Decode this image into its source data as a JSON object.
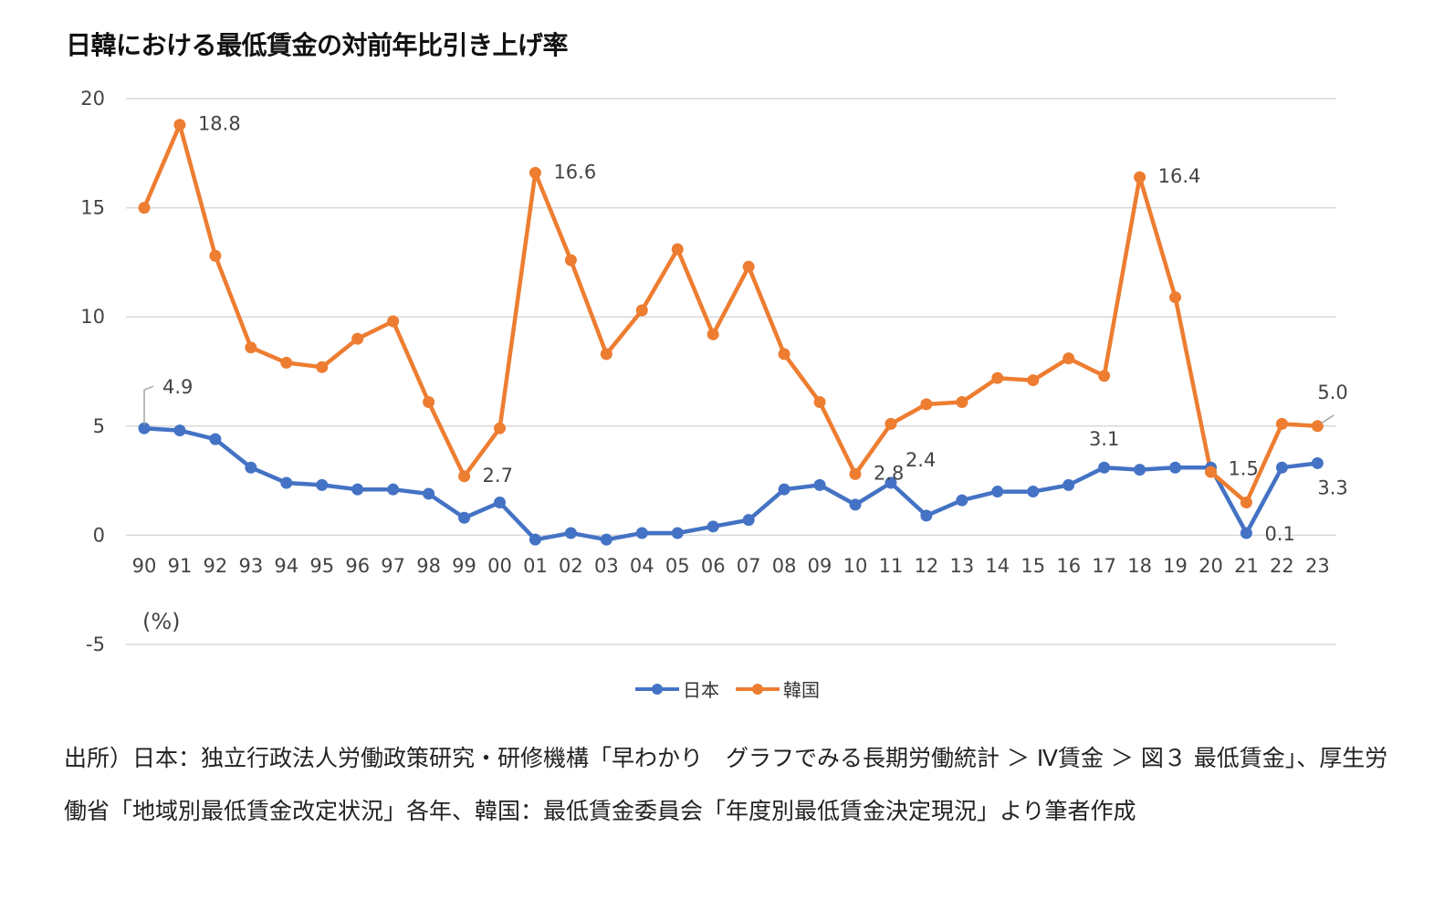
{
  "title": "日韓における最低賃金の対前年比引き上げ率",
  "source_text": "出所）日本：独立行政法人労働政策研究・研修機構「早わかり　グラフでみる長期労働統計 ＞ Ⅳ賃金 ＞ 図３ 最低賃金」、厚生労働省「地域別最低賃金改定状況」各年、韓国：最低賃金委員会「年度別最低賃金決定現況」より筆者作成",
  "chart_data": {
    "type": "line",
    "unit_label": "(%)",
    "ylim": [
      -5,
      20
    ],
    "yticks": [
      "20",
      "15",
      "10",
      "5",
      "0",
      "-5"
    ],
    "grid": true,
    "legend_position": "bottom",
    "categories": [
      "90",
      "91",
      "92",
      "93",
      "94",
      "95",
      "96",
      "97",
      "98",
      "99",
      "00",
      "01",
      "02",
      "03",
      "04",
      "05",
      "06",
      "07",
      "08",
      "09",
      "10",
      "11",
      "12",
      "13",
      "14",
      "15",
      "16",
      "17",
      "18",
      "19",
      "20",
      "21",
      "22",
      "23"
    ],
    "series": [
      {
        "name": "日本",
        "color": "#4472C4",
        "values": [
          4.9,
          4.8,
          4.4,
          3.1,
          2.4,
          2.3,
          2.1,
          2.1,
          1.9,
          0.8,
          1.5,
          -0.2,
          0.1,
          -0.2,
          0.1,
          0.1,
          0.4,
          0.7,
          2.1,
          2.3,
          1.4,
          2.4,
          0.9,
          1.6,
          2.0,
          2.0,
          2.3,
          3.1,
          3.0,
          3.1,
          3.1,
          0.1,
          3.1,
          3.3
        ],
        "labels": [
          {
            "index": 0,
            "text": "4.9"
          },
          {
            "index": 21,
            "text": "2.4"
          },
          {
            "index": 27,
            "text": "3.1"
          },
          {
            "index": 31,
            "text": "0.1"
          },
          {
            "index": 33,
            "text": "3.3"
          }
        ]
      },
      {
        "name": "韓国",
        "color": "#ED7D31",
        "values": [
          15.0,
          18.8,
          12.8,
          8.6,
          7.9,
          7.7,
          9.0,
          9.8,
          6.1,
          2.7,
          4.9,
          16.6,
          12.6,
          8.3,
          10.3,
          13.1,
          9.2,
          12.3,
          8.3,
          6.1,
          2.8,
          5.1,
          6.0,
          6.1,
          7.2,
          7.1,
          8.1,
          7.3,
          16.4,
          10.9,
          2.9,
          1.5,
          5.1,
          5.0
        ],
        "labels": [
          {
            "index": 1,
            "text": "18.8"
          },
          {
            "index": 9,
            "text": "2.7"
          },
          {
            "index": 11,
            "text": "16.6"
          },
          {
            "index": 20,
            "text": "2.8"
          },
          {
            "index": 28,
            "text": "16.4"
          },
          {
            "index": 31,
            "text": "1.5"
          },
          {
            "index": 33,
            "text": "5.0"
          }
        ]
      }
    ]
  }
}
